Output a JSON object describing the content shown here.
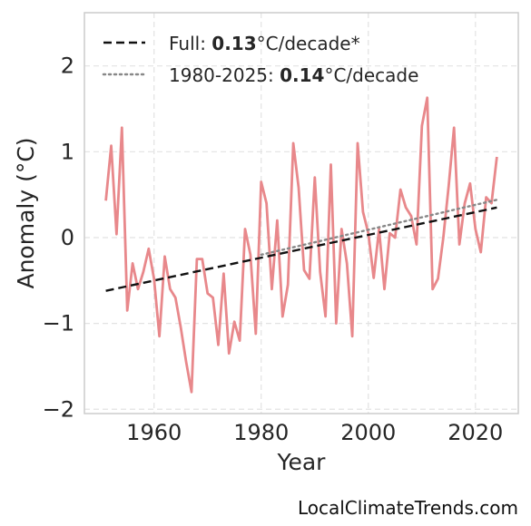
{
  "chart_data": {
    "type": "line",
    "xlabel": "Year",
    "ylabel": "Anomaly (°C)",
    "xlim": [
      1947,
      2028
    ],
    "ylim": [
      -2.05,
      2.62
    ],
    "grid": true,
    "legend_position": "top-left",
    "xticks": [
      1960,
      1980,
      2000,
      2020
    ],
    "xtick_labels": [
      "1960",
      "1980",
      "2000",
      "2020"
    ],
    "yticks": [
      -2,
      -1,
      0,
      1,
      2
    ],
    "ytick_labels": [
      "−2",
      "−1",
      "0",
      "1",
      "2"
    ],
    "series": [
      {
        "color": "#e8888b",
        "x": [
          1951,
          1952,
          1953,
          1954,
          1955,
          1956,
          1957,
          1958,
          1959,
          1960,
          1961,
          1962,
          1963,
          1964,
          1965,
          1966,
          1967,
          1968,
          1969,
          1970,
          1971,
          1972,
          1973,
          1974,
          1975,
          1976,
          1977,
          1978,
          1979,
          1980,
          1981,
          1982,
          1983,
          1984,
          1985,
          1986,
          1987,
          1988,
          1989,
          1990,
          1991,
          1992,
          1993,
          1994,
          1995,
          1996,
          1997,
          1998,
          1999,
          2000,
          2001,
          2002,
          2003,
          2004,
          2005,
          2006,
          2007,
          2008,
          2009,
          2010,
          2011,
          2012,
          2013,
          2014,
          2015,
          2016,
          2017,
          2018,
          2019,
          2020,
          2021,
          2022,
          2023,
          2024
        ],
        "y": [
          0.43,
          1.07,
          0.04,
          1.28,
          -0.85,
          -0.3,
          -0.6,
          -0.4,
          -0.13,
          -0.48,
          -1.15,
          -0.22,
          -0.6,
          -0.7,
          -1.05,
          -1.45,
          -1.8,
          -0.25,
          -0.25,
          -0.65,
          -0.7,
          -1.25,
          -0.42,
          -1.35,
          -0.98,
          -1.2,
          0.1,
          -0.2,
          -1.12,
          0.65,
          0.4,
          -0.6,
          0.2,
          -0.92,
          -0.55,
          1.1,
          0.58,
          -0.38,
          -0.48,
          0.7,
          -0.4,
          -0.92,
          0.85,
          -1.0,
          0.1,
          -0.3,
          -1.15,
          1.1,
          0.3,
          0.05,
          -0.47,
          0.1,
          -0.6,
          0.05,
          0.0,
          0.56,
          0.35,
          0.25,
          -0.08,
          1.3,
          1.63,
          -0.6,
          -0.48,
          0.0,
          0.6,
          1.28,
          -0.08,
          0.4,
          0.63,
          0.1,
          -0.17,
          0.47,
          0.4,
          0.94
        ]
      }
    ],
    "trends": [
      {
        "x": [
          1951,
          2024
        ],
        "y": [
          -0.62,
          0.35
        ],
        "color": "#111111",
        "dash": "dashed"
      },
      {
        "x": [
          1980,
          2024
        ],
        "y": [
          -0.2,
          0.44
        ],
        "color": "#888888",
        "dash": "dotted"
      }
    ],
    "legend": [
      {
        "style": "dashed",
        "color": "#111111",
        "prefix": "Full: ",
        "value": "0.13",
        "suffix": "°C/decade*"
      },
      {
        "style": "dotted",
        "color": "#888888",
        "prefix": "1980-2025: ",
        "value": "0.14",
        "suffix": "°C/decade"
      }
    ]
  },
  "credit": "LocalClimateTrends.com"
}
